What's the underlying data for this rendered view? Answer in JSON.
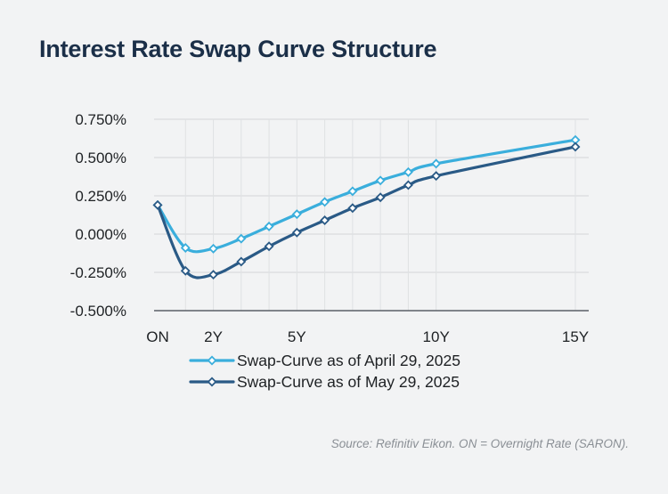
{
  "title": "Interest Rate Swap Curve Structure",
  "source": "Source: Refinitiv Eikon. ON = Overnight Rate (SARON).",
  "chart_data": {
    "type": "line",
    "x_label_positions": [
      0,
      1,
      2,
      3,
      4,
      5,
      6,
      7,
      8,
      9,
      10,
      15
    ],
    "x_tick_labels": [
      {
        "x": 0,
        "label": "ON"
      },
      {
        "x": 2,
        "label": "2Y"
      },
      {
        "x": 5,
        "label": "5Y"
      },
      {
        "x": 10,
        "label": "10Y"
      },
      {
        "x": 15,
        "label": "15Y"
      }
    ],
    "x": [
      0,
      1,
      2,
      3,
      4,
      5,
      6,
      7,
      8,
      9,
      10,
      15
    ],
    "ylim": [
      -0.5,
      0.75
    ],
    "y_ticks": [
      -0.5,
      -0.25,
      0,
      0.25,
      0.5,
      0.75
    ],
    "y_tick_labels": [
      "-0.500%",
      "-0.250%",
      "0.000%",
      "0.250%",
      "0.500%",
      "0.750%"
    ],
    "series": [
      {
        "name": "Swap-Curve as of April 29, 2025",
        "color": "#3aaedc",
        "values": [
          0.19,
          -0.09,
          -0.095,
          -0.03,
          0.05,
          0.13,
          0.21,
          0.28,
          0.35,
          0.405,
          0.46,
          0.615
        ]
      },
      {
        "name": "Swap-Curve as of May 29, 2025",
        "color": "#2a5a86",
        "values": [
          0.19,
          -0.24,
          -0.265,
          -0.18,
          -0.08,
          0.01,
          0.09,
          0.17,
          0.24,
          0.32,
          0.38,
          0.57
        ]
      }
    ],
    "legend_position": "bottom"
  }
}
